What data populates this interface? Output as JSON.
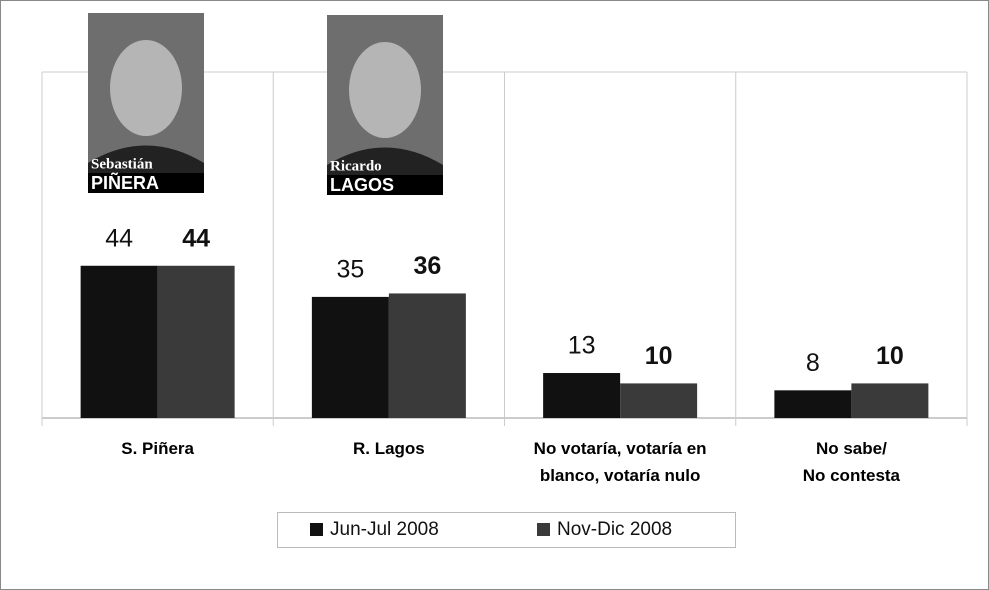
{
  "chart_data": {
    "type": "bar",
    "categories": [
      "S. Piñera",
      "R. Lagos",
      "No votaría, votaría en\nblanco, votaría nulo",
      "No sabe/\nNo contesta"
    ],
    "series": [
      {
        "name": "Jun-Jul 2008",
        "color": "#111111",
        "values": [
          44,
          35,
          13,
          8
        ]
      },
      {
        "name": "Nov-Dic 2008",
        "color": "#3a3a3a",
        "values": [
          44,
          36,
          10,
          10
        ]
      }
    ],
    "ylim": [
      0,
      100
    ],
    "legend": "bottom",
    "photos": [
      {
        "first_name": "Sebastián",
        "last_name": "PIÑERA"
      },
      {
        "first_name": "Ricardo",
        "last_name": "LAGOS"
      }
    ]
  }
}
